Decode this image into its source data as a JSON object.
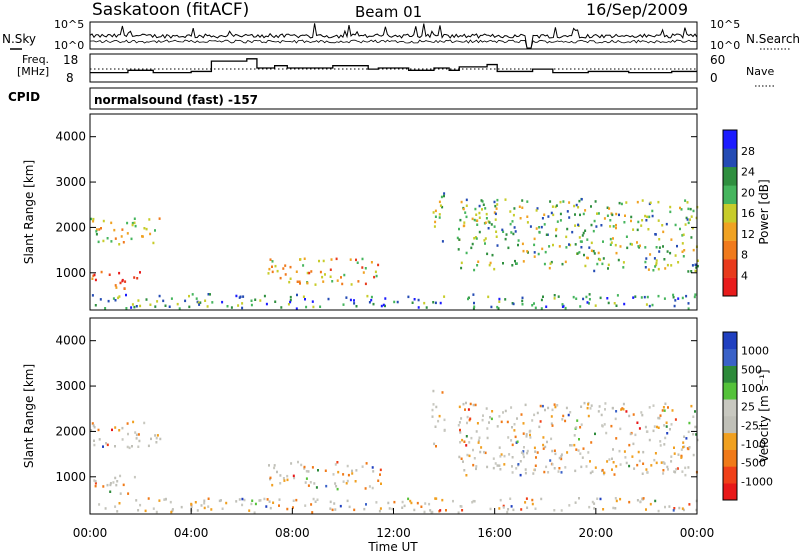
{
  "header": {
    "station": "Saskatoon (fitACF)",
    "beam": "Beam 01",
    "date": "16/Sep/2009"
  },
  "side_labels": {
    "nsky": "N.Sky",
    "freq_line1": "Freq.",
    "freq_line2": "[MHz]",
    "cpid": "CPID",
    "nsearch": "N.Search",
    "nave": "Nave"
  },
  "cpid_text": "normalsound (fast) -157",
  "colors": {
    "power": [
      "#1c1cff",
      "#244bb4",
      "#2f8f3f",
      "#45b55d",
      "#c7cc2a",
      "#f0a222",
      "#f07a1c",
      "#e83a1c",
      "#e81c1c"
    ],
    "velocity": [
      "#2040c0",
      "#3a62c8",
      "#2d8a3a",
      "#55c23a",
      "#c8c8c0",
      "#c0c0b8",
      "#f0a020",
      "#f07a18",
      "#f04018",
      "#e81818"
    ]
  },
  "chart_data": [
    {
      "type": "line",
      "panel": "noise",
      "left_label": "N.Sky",
      "right_label": "N.Search",
      "left_ticks": [
        "10^5",
        "10^0"
      ],
      "right_ticks": [
        "10^5",
        "10^0"
      ]
    },
    {
      "type": "line",
      "panel": "frequency",
      "left_label": "Freq. [MHz]",
      "right_label": "Nave",
      "left_ticks": [
        "18",
        "8"
      ],
      "right_ticks": [
        "60",
        "0"
      ],
      "freq_steps": [
        {
          "t": 0.0,
          "f": 11.0
        },
        {
          "t": 1.3,
          "f": 11.0
        },
        {
          "t": 1.5,
          "f": 12.0
        },
        {
          "t": 2.5,
          "f": 11.0
        },
        {
          "t": 4.0,
          "f": 11.5
        },
        {
          "t": 4.8,
          "f": 16.0
        },
        {
          "t": 6.2,
          "f": 17.0
        },
        {
          "t": 6.6,
          "f": 13.0
        },
        {
          "t": 7.3,
          "f": 14.0
        },
        {
          "t": 7.8,
          "f": 13.0
        },
        {
          "t": 9.6,
          "f": 14.0
        },
        {
          "t": 11.0,
          "f": 12.5
        },
        {
          "t": 11.4,
          "f": 13.0
        },
        {
          "t": 12.6,
          "f": 12.0
        },
        {
          "t": 13.6,
          "f": 13.0
        },
        {
          "t": 14.2,
          "f": 12.0
        },
        {
          "t": 14.6,
          "f": 13.5
        },
        {
          "t": 15.7,
          "f": 14.5
        },
        {
          "t": 16.1,
          "f": 11.5
        },
        {
          "t": 17.5,
          "f": 12.5
        },
        {
          "t": 18.3,
          "f": 11.0
        },
        {
          "t": 19.7,
          "f": 11.5
        },
        {
          "t": 21.3,
          "f": 11.0
        },
        {
          "t": 23.0,
          "f": 11.5
        },
        {
          "t": 24.0,
          "f": 11.5
        }
      ]
    },
    {
      "type": "heatmap",
      "panel": "power",
      "ylabel": "Slant Range [km]",
      "ylim": [
        180,
        4500
      ],
      "yticks": [
        1000,
        2000,
        3000,
        4000
      ],
      "colorbar_label": "Power [dB]",
      "colorbar_ticks": [
        "4",
        "8",
        "12",
        "16",
        "20",
        "24",
        "28"
      ],
      "echo_regions": [
        {
          "t0": 0.0,
          "t1": 2.0,
          "r0": 600,
          "r1": 1000,
          "level": 7
        },
        {
          "t0": 0.0,
          "t1": 2.8,
          "r0": 1600,
          "r1": 2200,
          "level": 4
        },
        {
          "t0": 0.0,
          "t1": 24.0,
          "r0": 180,
          "r1": 500,
          "level": 2
        },
        {
          "t0": 7.0,
          "t1": 11.5,
          "r0": 700,
          "r1": 1300,
          "level": 5
        },
        {
          "t0": 13.5,
          "t1": 14.0,
          "r0": 1600,
          "r1": 2900,
          "level": 3
        },
        {
          "t0": 14.5,
          "t1": 24.0,
          "r0": 1000,
          "r1": 2600,
          "level": 3
        }
      ]
    },
    {
      "type": "heatmap",
      "panel": "velocity",
      "ylabel": "Slant Range [km]",
      "xlabel": "Time UT",
      "ylim": [
        180,
        4500
      ],
      "yticks": [
        1000,
        2000,
        3000,
        4000
      ],
      "xlim": [
        0,
        24
      ],
      "xticks": [
        "00:00",
        "04:00",
        "08:00",
        "12:00",
        "16:00",
        "20:00",
        "00:00"
      ],
      "colorbar_label": "Velocity [m s⁻¹]",
      "colorbar_ticks": [
        "1000",
        "500",
        "100",
        "25",
        "-25",
        "-100",
        "-500",
        "-1000"
      ]
    }
  ]
}
